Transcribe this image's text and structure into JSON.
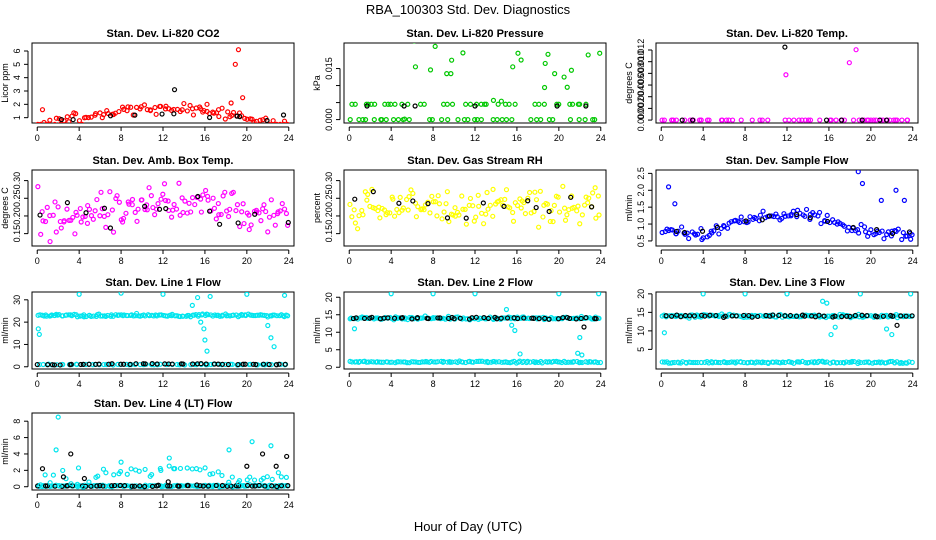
{
  "figure": {
    "title": "RBA_100303  Std. Dev. Diagnostics",
    "xlabel": "Hour of Day (UTC)"
  },
  "chart_data": [
    {
      "type": "scatter",
      "title": "Stan. Dev. Li-820 CO2",
      "ylabel": "Licor ppm",
      "xlim": [
        -0.5,
        24.5
      ],
      "ylim": [
        0.6,
        6.6
      ],
      "xticks": [
        0,
        4,
        8,
        12,
        16,
        20,
        24
      ],
      "yticks": [
        1,
        2,
        3,
        4,
        5,
        6
      ],
      "colors": [
        "#ff0000",
        "#000000"
      ],
      "pattern": [
        [
          0.5,
          1.0,
          1.7,
          6.0,
          100,
          0,
          0.35
        ],
        [
          0.5,
          1.0,
          1.25,
          10.0,
          10,
          1,
          0.1
        ]
      ],
      "outliers": [
        {
          "x": 0.5,
          "y": 1.6,
          "c": 0
        },
        {
          "x": 13.1,
          "y": 3.1,
          "c": 1
        },
        {
          "x": 15.5,
          "y": 1.8,
          "c": 0
        },
        {
          "x": 16.2,
          "y": 2.0,
          "c": 0
        },
        {
          "x": 17.3,
          "y": 1.6,
          "c": 0
        },
        {
          "x": 18.5,
          "y": 2.1,
          "c": 0
        },
        {
          "x": 18.9,
          "y": 5.0,
          "c": 0
        },
        {
          "x": 19.2,
          "y": 6.1,
          "c": 0
        },
        {
          "x": 19.6,
          "y": 2.5,
          "c": 0
        },
        {
          "x": 23.5,
          "y": 1.2,
          "c": 1
        }
      ]
    },
    {
      "type": "scatter",
      "title": "Stan. Dev. Li-820 Pressure",
      "ylabel": "kPa",
      "xlim": [
        -0.5,
        24.5
      ],
      "ylim": [
        -0.001,
        0.0225
      ],
      "xticks": [
        0,
        4,
        8,
        12,
        16,
        20,
        24
      ],
      "yticks": [
        0.0,
        0.005,
        0.01,
        0.015
      ],
      "ytick_labels": [
        "0.000",
        "",
        "",
        "0.015"
      ],
      "colors": [
        "#00c800",
        "#000000"
      ],
      "pattern": [
        [
          0.0,
          0.001,
          0.005,
          0.0,
          70,
          0,
          0.3
        ],
        [
          0.0045,
          0.0045,
          0.0055,
          0.0,
          70,
          0,
          0.3
        ],
        [
          0.004,
          0.0045,
          0.0055,
          0.0,
          12,
          1,
          0.2
        ]
      ],
      "outliers": [
        {
          "x": 8.2,
          "y": 0.0215,
          "c": 0
        },
        {
          "x": 9.3,
          "y": 0.0135,
          "c": 0
        },
        {
          "x": 9.7,
          "y": 0.0135,
          "c": 0
        },
        {
          "x": 15.6,
          "y": 0.0155,
          "c": 0
        },
        {
          "x": 16.1,
          "y": 0.0195,
          "c": 0
        },
        {
          "x": 16.4,
          "y": 0.0175,
          "c": 0
        },
        {
          "x": 18.7,
          "y": 0.0165,
          "c": 0
        },
        {
          "x": 19.6,
          "y": 0.0135,
          "c": 0
        },
        {
          "x": 20.5,
          "y": 0.0125,
          "c": 0
        },
        {
          "x": 21.2,
          "y": 0.0145,
          "c": 0
        },
        {
          "x": 22.8,
          "y": 0.019,
          "c": 0
        },
        {
          "x": 23.9,
          "y": 0.0195,
          "c": 0
        },
        {
          "x": 20.8,
          "y": 0.0095,
          "c": 0
        }
      ]
    },
    {
      "type": "scatter",
      "title": "Stan. Dev. Li-820 Temp.",
      "ylabel": "degrees C",
      "xlim": [
        -0.5,
        24.5
      ],
      "ylim": [
        -0.0005,
        0.0132
      ],
      "xticks": [
        0,
        4,
        8,
        12,
        16,
        20,
        24
      ],
      "yticks": [
        0.0,
        0.002,
        0.004,
        0.006,
        0.008,
        0.01,
        0.012
      ],
      "ytick_labels": [
        "0.000",
        "0.002",
        "0.004",
        "0.006",
        "0.008",
        "0.010",
        "0.012"
      ],
      "colors": [
        "#ff00ff",
        "#000000"
      ],
      "pattern": [
        [
          0.0,
          0.004,
          0.012,
          0.003,
          95,
          0,
          0.35
        ],
        [
          0.0,
          0.004,
          0.011,
          0.002,
          12,
          1,
          0.2
        ]
      ],
      "outliers": [
        {
          "x": 0.3,
          "y": 0.0,
          "c": 0
        },
        {
          "x": 1.0,
          "y": 0.0,
          "c": 0
        },
        {
          "x": 2.0,
          "y": 0.0,
          "c": 1
        },
        {
          "x": 3.0,
          "y": 0.0,
          "c": 1
        },
        {
          "x": 3.8,
          "y": 0.0,
          "c": 0
        },
        {
          "x": 20.5,
          "y": 0.0,
          "c": 0
        },
        {
          "x": 21.5,
          "y": 0.0,
          "c": 1
        },
        {
          "x": 22.5,
          "y": 0.0,
          "c": 0
        },
        {
          "x": 23.5,
          "y": 0.0,
          "c": 0
        },
        {
          "x": 11.8,
          "y": 0.0125,
          "c": 1
        }
      ]
    },
    {
      "type": "scatter",
      "title": "Stan. Dev. Amb. Box Temp.",
      "ylabel": "degrees C",
      "xlim": [
        -0.5,
        24.5
      ],
      "ylim": [
        0.115,
        0.33
      ],
      "xticks": [
        0,
        4,
        8,
        12,
        16,
        20,
        24
      ],
      "yticks": [
        0.15,
        0.2,
        0.25,
        0.3
      ],
      "ytick_labels": [
        "0.15",
        "0.20",
        "0.25",
        "0.30"
      ],
      "colors": [
        "#ff00ff",
        "#000000"
      ],
      "pattern": [
        [
          0.205,
          0.205,
          0.225,
          0.0,
          140,
          0,
          0.05
        ],
        [
          0.2,
          0.2,
          0.22,
          0.0,
          14,
          1,
          0.04
        ]
      ],
      "outliers": []
    },
    {
      "type": "scatter",
      "title": "Stan. Dev. Gas Stream RH",
      "ylabel": "percent",
      "xlim": [
        -0.5,
        24.5
      ],
      "ylim": [
        0.115,
        0.33
      ],
      "xticks": [
        0,
        4,
        8,
        12,
        16,
        20,
        24
      ],
      "yticks": [
        0.15,
        0.2,
        0.25,
        0.3
      ],
      "ytick_labels": [
        "0.15",
        "0.20",
        "0.25",
        "0.30"
      ],
      "colors": [
        "#ffff00",
        "#000000"
      ],
      "pattern": [
        [
          0.225,
          0.225,
          0.225,
          0.0,
          140,
          0,
          0.045
        ],
        [
          0.225,
          0.225,
          0.225,
          0.0,
          14,
          1,
          0.035
        ]
      ],
      "outliers": []
    },
    {
      "type": "scatter",
      "title": "Stan. Dev. Sample Flow",
      "ylabel": "ml/min",
      "xlim": [
        -0.5,
        24.5
      ],
      "ylim": [
        0.35,
        2.6
      ],
      "xticks": [
        0,
        4,
        8,
        12,
        16,
        20,
        24
      ],
      "yticks": [
        0.5,
        1.0,
        1.5,
        2.0,
        2.5
      ],
      "ytick_labels": [
        "0.5",
        "1.0",
        "1.5",
        "2.0",
        "2.5"
      ],
      "colors": [
        "#0000ff",
        "#000000"
      ],
      "pattern": [
        [
          0.8,
          0.7,
          1.25,
          3.0,
          120,
          0,
          0.15
        ],
        [
          0.8,
          0.75,
          1.2,
          3.0,
          14,
          1,
          0.08
        ]
      ],
      "outliers": [
        {
          "x": 0.7,
          "y": 2.1,
          "c": 0
        },
        {
          "x": 1.3,
          "y": 1.6,
          "c": 0
        },
        {
          "x": 18.8,
          "y": 2.55,
          "c": 0
        },
        {
          "x": 19.2,
          "y": 2.2,
          "c": 0
        },
        {
          "x": 22.4,
          "y": 2.0,
          "c": 0
        },
        {
          "x": 23.2,
          "y": 1.7,
          "c": 0
        },
        {
          "x": 23.8,
          "y": 0.55,
          "c": 0
        },
        {
          "x": 21.0,
          "y": 1.7,
          "c": 0
        }
      ]
    },
    {
      "type": "scatter",
      "title": "Stan. Dev. Line 1 Flow",
      "ylabel": "ml/min",
      "xlim": [
        -0.5,
        24.5
      ],
      "ylim": [
        -1.0,
        33.5
      ],
      "xticks": [
        0,
        4,
        8,
        12,
        16,
        20,
        24
      ],
      "yticks": [
        0,
        10,
        20,
        30
      ],
      "colors": [
        "#00e5ee",
        "#000000"
      ],
      "pattern": [
        [
          23.0,
          23.0,
          23.0,
          0.0,
          140,
          0,
          0.6
        ],
        [
          1.0,
          1.0,
          1.0,
          0.0,
          70,
          0,
          0.2
        ],
        [
          1.0,
          1.0,
          1.3,
          0.0,
          45,
          1,
          0.2
        ]
      ],
      "outliers": [
        {
          "x": 0.1,
          "y": 17.0,
          "c": 0
        },
        {
          "x": 0.2,
          "y": 14.5,
          "c": 0
        },
        {
          "x": 4.0,
          "y": 32.5,
          "c": 0
        },
        {
          "x": 8.0,
          "y": 33.0,
          "c": 0
        },
        {
          "x": 12.0,
          "y": 32.5,
          "c": 0
        },
        {
          "x": 14.8,
          "y": 27.5,
          "c": 0
        },
        {
          "x": 15.3,
          "y": 31.0,
          "c": 0
        },
        {
          "x": 15.6,
          "y": 20.0,
          "c": 0
        },
        {
          "x": 15.9,
          "y": 17.0,
          "c": 0
        },
        {
          "x": 16.0,
          "y": 12.0,
          "c": 0
        },
        {
          "x": 16.2,
          "y": 7.0,
          "c": 0
        },
        {
          "x": 16.5,
          "y": 31.5,
          "c": 0
        },
        {
          "x": 20.0,
          "y": 32.5,
          "c": 0
        },
        {
          "x": 22.3,
          "y": 13.0,
          "c": 0
        },
        {
          "x": 22.6,
          "y": 9.0,
          "c": 0
        },
        {
          "x": 23.6,
          "y": 32.0,
          "c": 0
        },
        {
          "x": 22.0,
          "y": 18.5,
          "c": 0
        }
      ]
    },
    {
      "type": "scatter",
      "title": "Stan. Dev. Line 2 Flow",
      "ylabel": "ml/min",
      "xlim": [
        -0.5,
        24.5
      ],
      "ylim": [
        -0.5,
        21.5
      ],
      "xticks": [
        0,
        4,
        8,
        12,
        16,
        20,
        24
      ],
      "yticks": [
        0,
        5,
        10,
        15,
        20
      ],
      "colors": [
        "#00e5ee",
        "#000000"
      ],
      "pattern": [
        [
          14.0,
          14.0,
          14.0,
          0.0,
          140,
          0,
          0.4
        ],
        [
          14.0,
          14.0,
          14.0,
          0.0,
          48,
          1,
          0.3
        ],
        [
          1.5,
          1.5,
          1.5,
          0.0,
          120,
          0,
          0.25
        ]
      ],
      "outliers": [
        {
          "x": 0.5,
          "y": 11.0,
          "c": 0
        },
        {
          "x": 4.0,
          "y": 21.0,
          "c": 0
        },
        {
          "x": 8.0,
          "y": 21.0,
          "c": 0
        },
        {
          "x": 12.0,
          "y": 21.0,
          "c": 0
        },
        {
          "x": 15.0,
          "y": 16.5,
          "c": 0
        },
        {
          "x": 15.5,
          "y": 12.0,
          "c": 0
        },
        {
          "x": 15.8,
          "y": 10.5,
          "c": 0
        },
        {
          "x": 16.3,
          "y": 3.8,
          "c": 0
        },
        {
          "x": 20.0,
          "y": 21.0,
          "c": 0
        },
        {
          "x": 21.8,
          "y": 4.0,
          "c": 0
        },
        {
          "x": 22.2,
          "y": 3.5,
          "c": 0
        },
        {
          "x": 22.4,
          "y": 11.5,
          "c": 1
        },
        {
          "x": 23.8,
          "y": 21.0,
          "c": 0
        },
        {
          "x": 22.0,
          "y": 8.5,
          "c": 0
        }
      ]
    },
    {
      "type": "scatter",
      "title": "Stan. Dev. Line 3 Flow",
      "ylabel": "ml/min",
      "xlim": [
        -0.5,
        24.5
      ],
      "ylim": [
        -0.3,
        20.5
      ],
      "xticks": [
        0,
        4,
        8,
        12,
        16,
        20,
        24
      ],
      "yticks": [
        5,
        10,
        15,
        20
      ],
      "colors": [
        "#00e5ee",
        "#000000"
      ],
      "pattern": [
        [
          14.0,
          14.0,
          14.0,
          0.0,
          140,
          0,
          0.4
        ],
        [
          14.0,
          14.0,
          14.0,
          0.0,
          48,
          1,
          0.3
        ],
        [
          1.5,
          1.5,
          1.5,
          0.0,
          120,
          0,
          0.25
        ]
      ],
      "outliers": [
        {
          "x": 0.3,
          "y": 9.5,
          "c": 0
        },
        {
          "x": 4.0,
          "y": 20.0,
          "c": 0
        },
        {
          "x": 8.0,
          "y": 20.0,
          "c": 0
        },
        {
          "x": 12.0,
          "y": 20.0,
          "c": 0
        },
        {
          "x": 15.4,
          "y": 18.0,
          "c": 0
        },
        {
          "x": 15.8,
          "y": 17.5,
          "c": 0
        },
        {
          "x": 16.2,
          "y": 9.0,
          "c": 0
        },
        {
          "x": 16.6,
          "y": 11.0,
          "c": 0
        },
        {
          "x": 19.0,
          "y": 20.0,
          "c": 0
        },
        {
          "x": 21.5,
          "y": 10.5,
          "c": 0
        },
        {
          "x": 22.0,
          "y": 9.0,
          "c": 0
        },
        {
          "x": 22.5,
          "y": 11.5,
          "c": 1
        },
        {
          "x": 23.8,
          "y": 20.0,
          "c": 0
        }
      ]
    },
    {
      "type": "scatter",
      "title": "Stan. Dev. Line 4 (LT) Flow",
      "ylabel": "ml/min",
      "xlim": [
        -0.5,
        24.5
      ],
      "ylim": [
        -0.4,
        9.0
      ],
      "xticks": [
        0,
        4,
        8,
        12,
        16,
        20,
        24
      ],
      "yticks": [
        0,
        2,
        4,
        6,
        8
      ],
      "colors": [
        "#00e5ee",
        "#000000"
      ],
      "pattern": [
        [
          0.1,
          0.1,
          0.1,
          0.0,
          140,
          0,
          0.1
        ],
        [
          0.1,
          0.1,
          0.1,
          0.0,
          50,
          1,
          0.08
        ],
        [
          0.8,
          1.0,
          2.0,
          0.0,
          55,
          0,
          0.9
        ]
      ],
      "outliers": [
        {
          "x": 2.0,
          "y": 8.5,
          "c": 0
        },
        {
          "x": 1.8,
          "y": 4.5,
          "c": 0
        },
        {
          "x": 0.5,
          "y": 2.2,
          "c": 1
        },
        {
          "x": 3.2,
          "y": 4.0,
          "c": 1
        },
        {
          "x": 2.5,
          "y": 1.2,
          "c": 1
        },
        {
          "x": 4.5,
          "y": 1.0,
          "c": 1
        },
        {
          "x": 21.5,
          "y": 4.0,
          "c": 1
        },
        {
          "x": 23.8,
          "y": 3.7,
          "c": 1
        },
        {
          "x": 20.0,
          "y": 2.5,
          "c": 1
        },
        {
          "x": 22.8,
          "y": 2.5,
          "c": 1
        },
        {
          "x": 12.5,
          "y": 0.6,
          "c": 1
        },
        {
          "x": 20.5,
          "y": 5.5,
          "c": 0
        },
        {
          "x": 22.3,
          "y": 5.0,
          "c": 0
        },
        {
          "x": 18.3,
          "y": 4.5,
          "c": 0
        },
        {
          "x": 8.0,
          "y": 3.0,
          "c": 0
        },
        {
          "x": 12.6,
          "y": 3.5,
          "c": 0
        }
      ]
    }
  ]
}
